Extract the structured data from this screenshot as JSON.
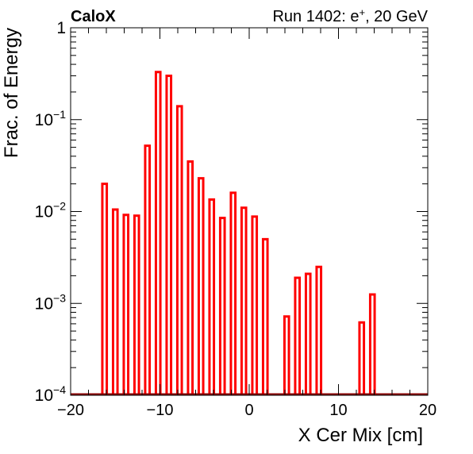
{
  "header": {
    "left_label": "CaloX",
    "right_label_prefix": "Run 1402: e",
    "right_label_sup": "+",
    "right_label_suffix": ", 20 GeV"
  },
  "chart_data": {
    "type": "bar",
    "xlabel": "X Cer Mix [cm]",
    "ylabel": "Frac. of Energy",
    "xlim": [
      -20,
      20
    ],
    "ylim": [
      0.0001,
      1
    ],
    "yscale": "log",
    "grid": false,
    "x_ticks": [
      -20,
      -10,
      0,
      10,
      20
    ],
    "x_tick_labels": [
      "−20",
      "−10",
      "0",
      "10",
      "20"
    ],
    "y_ticks": [
      {
        "value": 1,
        "base": "1",
        "exp": ""
      },
      {
        "value": 0.1,
        "base": "10",
        "exp": "−1"
      },
      {
        "value": 0.01,
        "base": "10",
        "exp": "−2"
      },
      {
        "value": 0.001,
        "base": "10",
        "exp": "−3"
      },
      {
        "value": 0.0001,
        "base": "10",
        "exp": "−4"
      }
    ],
    "bar_width": 0.5,
    "bars": [
      {
        "x": -16.2,
        "y": 0.02
      },
      {
        "x": -15.0,
        "y": 0.0105
      },
      {
        "x": -13.8,
        "y": 0.0092
      },
      {
        "x": -12.6,
        "y": 0.009
      },
      {
        "x": -11.4,
        "y": 0.052
      },
      {
        "x": -10.2,
        "y": 0.33
      },
      {
        "x": -9.0,
        "y": 0.3
      },
      {
        "x": -7.8,
        "y": 0.14
      },
      {
        "x": -6.6,
        "y": 0.035
      },
      {
        "x": -5.4,
        "y": 0.023
      },
      {
        "x": -4.2,
        "y": 0.0135
      },
      {
        "x": -3.0,
        "y": 0.0085
      },
      {
        "x": -1.8,
        "y": 0.016
      },
      {
        "x": -0.6,
        "y": 0.011
      },
      {
        "x": 0.6,
        "y": 0.0088
      },
      {
        "x": 1.8,
        "y": 0.005
      },
      {
        "x": 4.2,
        "y": 0.00072
      },
      {
        "x": 5.4,
        "y": 0.0019
      },
      {
        "x": 6.6,
        "y": 0.0021
      },
      {
        "x": 7.8,
        "y": 0.0025
      },
      {
        "x": 12.6,
        "y": 0.00062
      },
      {
        "x": 13.8,
        "y": 0.00125
      }
    ],
    "colors": {
      "bar": "#ff0000",
      "baseline": "#8b0000",
      "axis": "#000000"
    }
  }
}
